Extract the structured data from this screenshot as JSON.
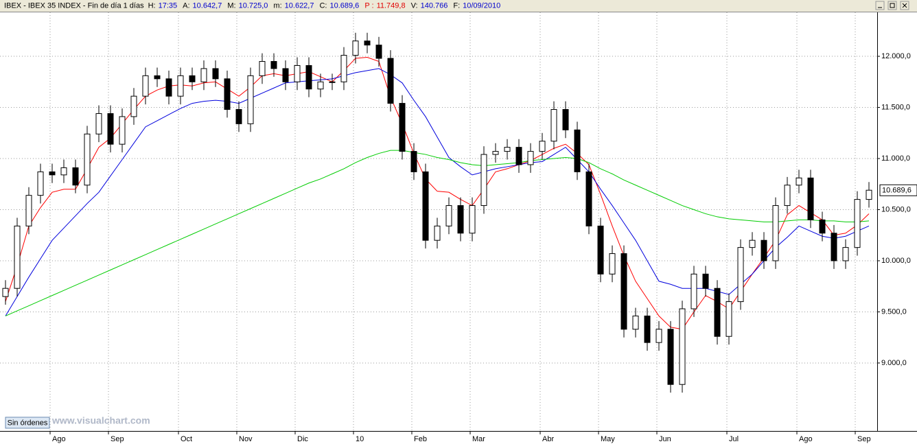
{
  "chart_data": {
    "type": "candlestick",
    "title": "IBEX - IBEX 35 INDEX - Fin de día 1 días",
    "info": [
      {
        "label": "H:",
        "value": "17:35"
      },
      {
        "label": "A:",
        "value": "10.642,7"
      },
      {
        "label": "M:",
        "value": "10.725,0"
      },
      {
        "label": "m:",
        "value": "10.622,7"
      },
      {
        "label": "C:",
        "value": "10.689,6"
      },
      {
        "label": "P :",
        "value": "11.749,8",
        "color": "#e00000"
      },
      {
        "label": "V:",
        "value": "140.766"
      },
      {
        "label": "F:",
        "value": "10/09/2010"
      }
    ],
    "status_button": "Sin órdenes",
    "watermark": "www.visualchart.com",
    "last_price": {
      "value": 10689.6,
      "label": "10.689,6"
    },
    "categories": [
      null,
      null,
      null,
      null,
      "Ago",
      null,
      null,
      null,
      null,
      "Sep",
      null,
      null,
      null,
      null,
      null,
      "Oct",
      null,
      null,
      null,
      null,
      "Nov",
      null,
      null,
      null,
      null,
      "Dic",
      null,
      null,
      null,
      null,
      "10",
      null,
      null,
      null,
      null,
      "Feb",
      null,
      null,
      null,
      null,
      "Mar",
      null,
      null,
      null,
      null,
      null,
      "Abr",
      null,
      null,
      null,
      null,
      "May",
      null,
      null,
      null,
      null,
      "Jun",
      null,
      null,
      null,
      null,
      null,
      "Jul",
      null,
      null,
      null,
      null,
      null,
      "Ago",
      null,
      null,
      null,
      null,
      "Sep",
      null
    ],
    "open": [
      9650,
      9730,
      10340,
      10640,
      10870,
      10840,
      10910,
      10740,
      11240,
      11440,
      11140,
      11410,
      11610,
      11810,
      11780,
      11610,
      11810,
      11750,
      11880,
      11780,
      11480,
      11340,
      11810,
      11950,
      11880,
      11750,
      11910,
      11680,
      11750,
      11750,
      12010,
      12150,
      12110,
      11980,
      11540,
      11070,
      10870,
      10200,
      10340,
      10540,
      10270,
      10540,
      11040,
      11070,
      11110,
      10940,
      11070,
      11170,
      11480,
      11280,
      10870,
      10340,
      9870,
      10070,
      9330,
      9460,
      9200,
      9330,
      8790,
      9530,
      9870,
      9730,
      9260,
      9600,
      10130,
      10200,
      10000,
      10540,
      10740,
      10810,
      10400,
      10270,
      10000,
      10130,
      10600
    ],
    "high": [
      9810,
      10420,
      10720,
      10950,
      10950,
      10990,
      10990,
      11320,
      11520,
      11520,
      11490,
      11690,
      11890,
      11890,
      11860,
      11890,
      11890,
      11960,
      11960,
      11860,
      11560,
      11890,
      12030,
      12030,
      11960,
      11990,
      11990,
      11830,
      11830,
      12090,
      12230,
      12230,
      12190,
      12060,
      11620,
      11150,
      10950,
      10420,
      10620,
      10620,
      10620,
      11120,
      11150,
      11190,
      11190,
      11150,
      11250,
      11560,
      11560,
      11360,
      10950,
      10420,
      10150,
      10150,
      9540,
      9540,
      9410,
      9410,
      9610,
      9950,
      9950,
      9810,
      9680,
      10210,
      10280,
      10280,
      10620,
      10820,
      10890,
      10890,
      10480,
      10350,
      10210,
      10680,
      10770
    ],
    "low": [
      9570,
      9650,
      10260,
      10560,
      10760,
      10760,
      10660,
      10660,
      11160,
      11060,
      11060,
      11330,
      11530,
      11700,
      11530,
      11530,
      11670,
      11670,
      11700,
      11400,
      11260,
      11260,
      11730,
      11800,
      11670,
      11670,
      11600,
      11600,
      11670,
      11670,
      11930,
      12030,
      11900,
      11460,
      10990,
      10790,
      10120,
      10120,
      10260,
      10190,
      10190,
      10460,
      10960,
      10990,
      10860,
      10860,
      10990,
      11090,
      11200,
      10790,
      10260,
      9790,
      9790,
      9250,
      9250,
      9120,
      9120,
      8710,
      8710,
      9450,
      9650,
      9180,
      9180,
      9520,
      10050,
      9920,
      9920,
      10460,
      10660,
      10320,
      10190,
      9920,
      9920,
      10050,
      10520
    ],
    "close": [
      9730,
      10340,
      10640,
      10870,
      10840,
      10910,
      10740,
      11240,
      11440,
      11140,
      11410,
      11610,
      11810,
      11780,
      11610,
      11810,
      11750,
      11880,
      11780,
      11480,
      11340,
      11810,
      11950,
      11880,
      11750,
      11910,
      11680,
      11750,
      11750,
      12010,
      12150,
      12110,
      11980,
      11540,
      11070,
      10870,
      10200,
      10340,
      10540,
      10270,
      10540,
      11040,
      11070,
      11110,
      10940,
      11070,
      11170,
      11480,
      11280,
      10870,
      10340,
      9870,
      10070,
      9330,
      9460,
      9200,
      9330,
      8790,
      9530,
      9870,
      9730,
      9260,
      9600,
      10130,
      10200,
      10000,
      10540,
      10740,
      10810,
      10400,
      10270,
      10000,
      10130,
      10600,
      10690
    ],
    "series": [
      {
        "color": "#ff0000",
        "values": [
          9600,
          9950,
          10340,
          10520,
          10670,
          10700,
          10700,
          10900,
          11110,
          11200,
          11340,
          11480,
          11610,
          11670,
          11710,
          11720,
          11710,
          11740,
          11750,
          11680,
          11610,
          11700,
          11810,
          11830,
          11810,
          11830,
          11850,
          11800,
          11750,
          11860,
          11980,
          11990,
          11950,
          11600,
          11340,
          11050,
          10800,
          10680,
          10670,
          10600,
          10540,
          10700,
          10870,
          10900,
          10940,
          10980,
          11040,
          11100,
          11140,
          11050,
          10940,
          10650,
          10340,
          10050,
          9800,
          9630,
          9460,
          9350,
          9330,
          9500,
          9660,
          9600,
          9530,
          9700,
          9870,
          10030,
          10200,
          10450,
          10540,
          10470,
          10400,
          10250,
          10270,
          10350,
          10460
        ]
      },
      {
        "color": "#0000dd",
        "values": [
          9460,
          9650,
          9840,
          10020,
          10200,
          10320,
          10440,
          10560,
          10670,
          10830,
          10990,
          11150,
          11310,
          11370,
          11430,
          11490,
          11540,
          11560,
          11570,
          11560,
          11540,
          11590,
          11640,
          11690,
          11740,
          11750,
          11760,
          11770,
          11780,
          11810,
          11840,
          11860,
          11880,
          11820,
          11740,
          11570,
          11410,
          11210,
          11010,
          10920,
          10840,
          10870,
          10900,
          10920,
          10940,
          10960,
          10970,
          11040,
          11110,
          10990,
          10870,
          10700,
          10540,
          10370,
          10200,
          10000,
          9800,
          9770,
          9730,
          9730,
          9730,
          9700,
          9670,
          9770,
          9870,
          10000,
          10130,
          10230,
          10340,
          10290,
          10240,
          10220,
          10240,
          10290,
          10340
        ]
      },
      {
        "color": "#00cc00",
        "values": [
          9460,
          9510,
          9560,
          9610,
          9660,
          9710,
          9760,
          9810,
          9860,
          9910,
          9960,
          10010,
          10060,
          10110,
          10160,
          10210,
          10260,
          10310,
          10360,
          10410,
          10460,
          10510,
          10560,
          10610,
          10660,
          10710,
          10760,
          10800,
          10850,
          10900,
          10960,
          11010,
          11050,
          11080,
          11080,
          11060,
          11040,
          11010,
          10990,
          10960,
          10940,
          10930,
          10940,
          10950,
          10960,
          10980,
          10990,
          11000,
          11010,
          11000,
          10960,
          10900,
          10850,
          10790,
          10740,
          10690,
          10640,
          10590,
          10540,
          10500,
          10460,
          10430,
          10410,
          10400,
          10390,
          10380,
          10380,
          10390,
          10400,
          10400,
          10390,
          10390,
          10380,
          10380,
          10390
        ]
      }
    ],
    "up_color": "#ffffff",
    "down_color": "#000000",
    "ylim": [
      8335,
      12430
    ],
    "yticks": [
      {
        "value": 9000,
        "label": "9.000,0"
      },
      {
        "value": 9500,
        "label": "9.500,0"
      },
      {
        "value": 10000,
        "label": "10.000,0"
      },
      {
        "value": 10500,
        "label": "10.500,0"
      },
      {
        "value": 11000,
        "label": "11.000,0"
      },
      {
        "value": 11500,
        "label": "11.500,0"
      },
      {
        "value": 12000,
        "label": "12.000,0"
      }
    ],
    "grid": true
  }
}
